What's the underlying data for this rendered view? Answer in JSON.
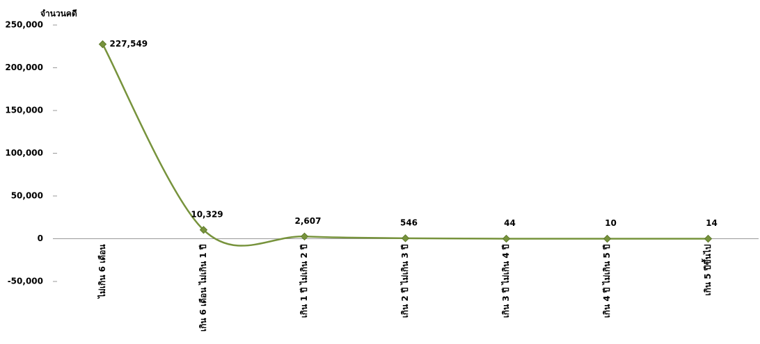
{
  "chart_data": {
    "type": "line",
    "y_axis_label": "จำนวนคดี",
    "categories": [
      "ไม่เกิน 6 เดือน",
      "เกิน 6 เดือน ไม่เกิน 1 ปี",
      "เกิน 1 ปี ไม่เกิน 2 ปี",
      "เกิน 2 ปี ไม่เกิน 3 ปี",
      "เกิน 3 ปี ไม่เกิน 4 ปี",
      "เกิน 4 ปี ไม่เกิน 5 ปี",
      "เกิน 5 ปีขึ้นไป"
    ],
    "values": [
      227549,
      10329,
      2607,
      546,
      44,
      10,
      14
    ],
    "value_labels": [
      "227,549",
      "10,329",
      "2,607",
      "546",
      "44",
      "10",
      "14"
    ],
    "color": "#77933c",
    "smooth": true,
    "ylim": [
      -50000,
      250000
    ],
    "yticks": [
      {
        "value": 250000,
        "label": "250,000"
      },
      {
        "value": 200000,
        "label": "200,000"
      },
      {
        "value": 150000,
        "label": "150,000"
      },
      {
        "value": 100000,
        "label": "100,000"
      },
      {
        "value": 50000,
        "label": "50,000"
      },
      0,
      {
        "value": -50000,
        "label": "-50,000"
      }
    ]
  }
}
